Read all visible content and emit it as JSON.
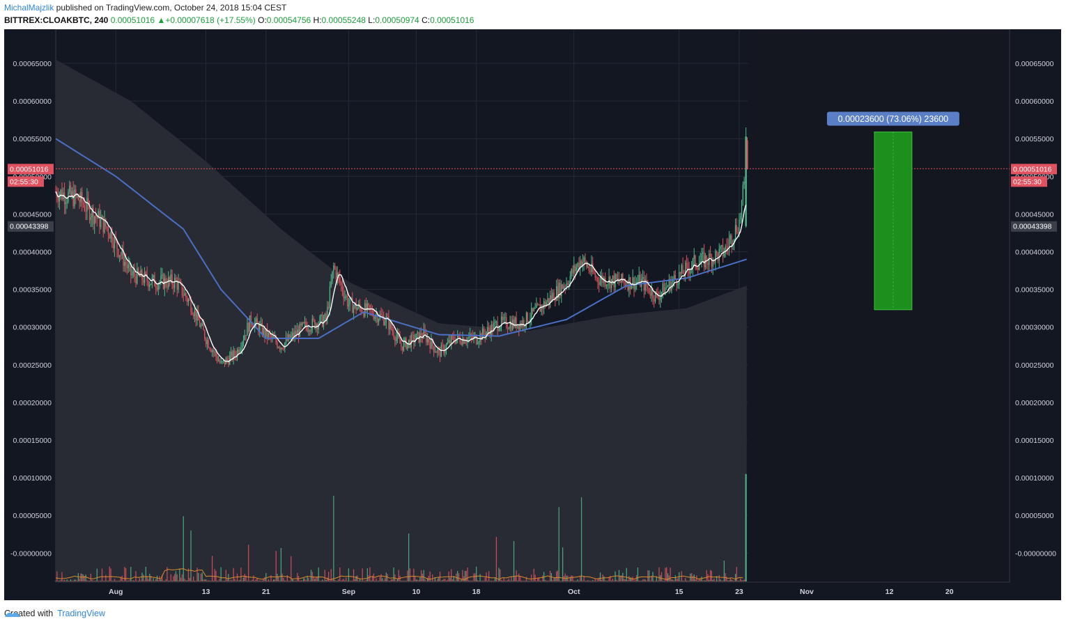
{
  "header": {
    "author": "MichalMajzlik",
    "published_text": " published on TradingView.com, October 24, 2018 15:04 CEST",
    "symbol": "BITTREX:CLOAKBTC, 240",
    "last": "0.00051016",
    "change": "+0.00007618 (+17.55%)",
    "o_label": "O:",
    "o_value": "0.00054756",
    "h_label": "H:",
    "h_value": "0.00055248",
    "l_label": "L:",
    "l_value": "0.00050974",
    "c_label": "C:",
    "c_value": "0.00051016"
  },
  "footer": {
    "created_with": "Created with",
    "brand": "TradingView"
  },
  "measure_label": "0.00023600 (73.06%) 23600",
  "price_tags": {
    "last_price": "0.00051016",
    "countdown": "02:55:30",
    "ma_value": "0.00043398"
  },
  "colors": {
    "background": "#131722",
    "up_candle": "#4fb98a",
    "down_candle": "#e0525f",
    "sma": "#4a6fc4",
    "fast_ma": "#ffffff",
    "cloud": "#2a2c36",
    "measure_fill": "#1d8f1d",
    "measure_label_bg": "#5b7fc7",
    "last_price_line": "#e0525f",
    "volume_ma": "#d98b2b"
  },
  "chart_data": {
    "type": "candlestick",
    "y_ticks": [
      "0.00065000",
      "0.00060000",
      "0.00055000",
      "0.00050000",
      "0.00045000",
      "0.00040000",
      "0.00035000",
      "0.00030000",
      "0.00025000",
      "0.00020000",
      "0.00015000",
      "0.00010000",
      "0.00005000",
      "-0.00000000"
    ],
    "x_ticks": [
      "Aug",
      "13",
      "21",
      "Sep",
      "10",
      "18",
      "Oct",
      "15",
      "23",
      "Nov",
      "12",
      "20"
    ],
    "ylim": [
      -4e-05,
      0.0007
    ],
    "price_path": [
      [
        "2018-07-24",
        0.00048
      ],
      [
        "2018-07-27",
        0.00047
      ],
      [
        "2018-07-31",
        0.00043
      ],
      [
        "2018-08-03",
        0.00037
      ],
      [
        "2018-08-06",
        0.00036
      ],
      [
        "2018-08-09",
        0.00036
      ],
      [
        "2018-08-11",
        0.00033
      ],
      [
        "2018-08-13",
        0.000285
      ],
      [
        "2018-08-15",
        0.00025
      ],
      [
        "2018-08-17",
        0.000265
      ],
      [
        "2018-08-19",
        0.00031
      ],
      [
        "2018-08-21",
        0.00029
      ],
      [
        "2018-08-23",
        0.000275
      ],
      [
        "2018-08-26",
        0.0003
      ],
      [
        "2018-08-29",
        0.00031
      ],
      [
        "2018-08-30",
        0.00038
      ],
      [
        "2018-09-01",
        0.00033
      ],
      [
        "2018-09-04",
        0.00032
      ],
      [
        "2018-09-06",
        0.00031
      ],
      [
        "2018-09-08",
        0.000275
      ],
      [
        "2018-09-11",
        0.00029
      ],
      [
        "2018-09-13",
        0.000265
      ],
      [
        "2018-09-15",
        0.000285
      ],
      [
        "2018-09-18",
        0.000285
      ],
      [
        "2018-09-21",
        0.000305
      ],
      [
        "2018-09-24",
        0.000305
      ],
      [
        "2018-09-27",
        0.00033
      ],
      [
        "2018-09-30",
        0.00036
      ],
      [
        "2018-10-02",
        0.00039
      ],
      [
        "2018-10-04",
        0.000365
      ],
      [
        "2018-10-07",
        0.00036
      ],
      [
        "2018-10-10",
        0.00036
      ],
      [
        "2018-10-12",
        0.00034
      ],
      [
        "2018-10-14",
        0.00036
      ],
      [
        "2018-10-17",
        0.000385
      ],
      [
        "2018-10-19",
        0.00039
      ],
      [
        "2018-10-21",
        0.0004
      ],
      [
        "2018-10-23",
        0.00044
      ],
      [
        "2018-10-24",
        0.00051
      ]
    ],
    "sma": [
      [
        "2018-07-24",
        0.00055
      ],
      [
        "2018-08-01",
        0.0005
      ],
      [
        "2018-08-10",
        0.00043
      ],
      [
        "2018-08-15",
        0.00035
      ],
      [
        "2018-08-21",
        0.000285
      ],
      [
        "2018-08-28",
        0.000285
      ],
      [
        "2018-09-03",
        0.00032
      ],
      [
        "2018-09-13",
        0.00029
      ],
      [
        "2018-09-21",
        0.000288
      ],
      [
        "2018-09-30",
        0.00031
      ],
      [
        "2018-10-08",
        0.000355
      ],
      [
        "2018-10-16",
        0.000365
      ],
      [
        "2018-10-24",
        0.00039
      ]
    ],
    "cloud_upper": [
      [
        "2018-07-24",
        0.000655
      ],
      [
        "2018-08-03",
        0.0006
      ],
      [
        "2018-08-13",
        0.00052
      ],
      [
        "2018-08-23",
        0.00043
      ],
      [
        "2018-09-01",
        0.00036
      ],
      [
        "2018-09-13",
        0.000305
      ],
      [
        "2018-09-25",
        0.000295
      ],
      [
        "2018-10-06",
        0.000315
      ],
      [
        "2018-10-16",
        0.000325
      ],
      [
        "2018-10-24",
        0.000355
      ]
    ],
    "volume_baseline": 0.0,
    "measure": {
      "from": 0.000323,
      "to": 0.000559,
      "start": "2018-11-10",
      "end": "2018-11-15",
      "label": "0.00023600 (73.06%) 23600"
    },
    "last_price": 0.00051016,
    "ma_value": 0.00043398
  }
}
